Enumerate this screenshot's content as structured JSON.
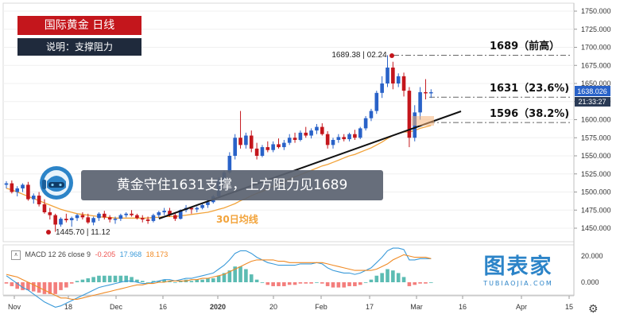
{
  "title": "国际黄金  日线",
  "description": "说明：支撑阻力",
  "banner": "黄金守住1631支撑，上方阻力见1689",
  "ma_label": "30日均线",
  "annotations": {
    "high_label": "1689.38 | 02.24",
    "low_label": "1445.70 | 11.12",
    "r1": "1689（前高）",
    "r2": "1631（23.6%)",
    "r3": "1596（38.2%)"
  },
  "price_axis": {
    "ticks": [
      "1750.000",
      "1725.000",
      "1700.000",
      "1675.000",
      "1650.000",
      "1625.000",
      "1600.000",
      "1575.000",
      "1550.000",
      "1525.000",
      "1500.000",
      "1475.000",
      "1450.000"
    ],
    "current_price": "1638.026",
    "countdown": "21:33:27"
  },
  "macd_axis": {
    "ticks": [
      "20.000",
      "0.000"
    ]
  },
  "time_axis": {
    "labels": [
      "Nov",
      "18",
      "Dec",
      "16",
      "2020",
      "20",
      "Feb",
      "17",
      "Mar",
      "16",
      "Apr",
      "15"
    ]
  },
  "macd_legend": {
    "name": "MACD 12 26 close 9",
    "hist": "-0.205",
    "macd": "17.968",
    "signal": "18.173"
  },
  "watermark": {
    "main": "图表家",
    "sub": "TUBIAOJIA.COM"
  },
  "colors": {
    "up": "#2962c8",
    "down": "#c4161c",
    "ma": "#f2a33a",
    "title_bg": "#c4161c",
    "desc_bg": "#1f2a3c",
    "macd_line": "#3a9ad9",
    "signal_line": "#f08a24",
    "hist_up": "#26a69a",
    "hist_down": "#ef5350"
  },
  "chart_data": {
    "type": "candlestick",
    "y_range": [
      1425,
      1760
    ],
    "candles": [
      [
        1510,
        1515,
        1505,
        1512
      ],
      [
        1512,
        1516,
        1498,
        1500
      ],
      [
        1500,
        1508,
        1494,
        1505
      ],
      [
        1505,
        1512,
        1500,
        1510
      ],
      [
        1510,
        1514,
        1488,
        1490
      ],
      [
        1490,
        1498,
        1484,
        1495
      ],
      [
        1495,
        1500,
        1480,
        1483
      ],
      [
        1483,
        1490,
        1470,
        1472
      ],
      [
        1472,
        1478,
        1462,
        1468
      ],
      [
        1468,
        1470,
        1445,
        1455
      ],
      [
        1455,
        1465,
        1452,
        1463
      ],
      [
        1463,
        1470,
        1458,
        1461
      ],
      [
        1461,
        1466,
        1452,
        1464
      ],
      [
        1464,
        1470,
        1460,
        1468
      ],
      [
        1468,
        1472,
        1462,
        1465
      ],
      [
        1465,
        1470,
        1456,
        1458
      ],
      [
        1458,
        1466,
        1454,
        1464
      ],
      [
        1464,
        1472,
        1460,
        1470
      ],
      [
        1470,
        1474,
        1462,
        1465
      ],
      [
        1465,
        1468,
        1458,
        1462
      ],
      [
        1462,
        1466,
        1456,
        1463
      ],
      [
        1463,
        1470,
        1460,
        1468
      ],
      [
        1468,
        1472,
        1465,
        1470
      ],
      [
        1470,
        1475,
        1466,
        1468
      ],
      [
        1468,
        1470,
        1462,
        1464
      ],
      [
        1464,
        1468,
        1458,
        1462
      ],
      [
        1462,
        1466,
        1456,
        1460
      ],
      [
        1460,
        1470,
        1458,
        1468
      ],
      [
        1468,
        1474,
        1464,
        1472
      ],
      [
        1472,
        1478,
        1468,
        1474
      ],
      [
        1474,
        1478,
        1466,
        1468
      ],
      [
        1468,
        1472,
        1460,
        1463
      ],
      [
        1463,
        1476,
        1462,
        1475
      ],
      [
        1475,
        1482,
        1472,
        1478
      ],
      [
        1478,
        1480,
        1470,
        1476
      ],
      [
        1476,
        1480,
        1472,
        1478
      ],
      [
        1478,
        1485,
        1476,
        1482
      ],
      [
        1482,
        1490,
        1478,
        1486
      ],
      [
        1486,
        1496,
        1484,
        1494
      ],
      [
        1494,
        1520,
        1492,
        1517
      ],
      [
        1517,
        1530,
        1512,
        1527
      ],
      [
        1527,
        1555,
        1525,
        1550
      ],
      [
        1550,
        1580,
        1545,
        1575
      ],
      [
        1575,
        1612,
        1560,
        1565
      ],
      [
        1565,
        1582,
        1560,
        1578
      ],
      [
        1578,
        1585,
        1555,
        1560
      ],
      [
        1560,
        1568,
        1545,
        1550
      ],
      [
        1550,
        1565,
        1548,
        1562
      ],
      [
        1562,
        1570,
        1555,
        1558
      ],
      [
        1558,
        1570,
        1555,
        1566
      ],
      [
        1566,
        1574,
        1560,
        1562
      ],
      [
        1562,
        1572,
        1558,
        1568
      ],
      [
        1568,
        1580,
        1565,
        1575
      ],
      [
        1575,
        1582,
        1568,
        1572
      ],
      [
        1572,
        1585,
        1570,
        1582
      ],
      [
        1582,
        1590,
        1575,
        1578
      ],
      [
        1578,
        1588,
        1574,
        1585
      ],
      [
        1585,
        1594,
        1580,
        1590
      ],
      [
        1590,
        1595,
        1578,
        1580
      ],
      [
        1580,
        1584,
        1560,
        1565
      ],
      [
        1565,
        1575,
        1560,
        1572
      ],
      [
        1572,
        1580,
        1568,
        1576
      ],
      [
        1576,
        1580,
        1570,
        1573
      ],
      [
        1573,
        1582,
        1570,
        1580
      ],
      [
        1580,
        1586,
        1572,
        1575
      ],
      [
        1575,
        1590,
        1573,
        1588
      ],
      [
        1588,
        1605,
        1585,
        1602
      ],
      [
        1602,
        1615,
        1598,
        1612
      ],
      [
        1612,
        1640,
        1608,
        1637
      ],
      [
        1637,
        1660,
        1630,
        1650
      ],
      [
        1650,
        1689,
        1645,
        1672
      ],
      [
        1672,
        1680,
        1642,
        1650
      ],
      [
        1650,
        1664,
        1645,
        1660
      ],
      [
        1660,
        1665,
        1632,
        1640
      ],
      [
        1640,
        1645,
        1562,
        1575
      ],
      [
        1575,
        1620,
        1570,
        1610
      ],
      [
        1610,
        1645,
        1600,
        1638
      ],
      [
        1638,
        1656,
        1628,
        1637
      ],
      [
        1637,
        1642,
        1630,
        1638
      ]
    ],
    "ma30": [
      1505,
      1503,
      1500,
      1497,
      1494,
      1491,
      1488,
      1485,
      1482,
      1479,
      1476,
      1474,
      1472,
      1470,
      1469,
      1468,
      1467,
      1466,
      1465,
      1465,
      1464,
      1464,
      1464,
      1464,
      1464,
      1464,
      1464,
      1465,
      1465,
      1466,
      1466,
      1466,
      1467,
      1468,
      1469,
      1470,
      1471,
      1472,
      1474,
      1476,
      1478,
      1481,
      1484,
      1488,
      1491,
      1495,
      1498,
      1501,
      1504,
      1508,
      1511,
      1514,
      1518,
      1521,
      1524,
      1527,
      1530,
      1533,
      1536,
      1538,
      1541,
      1544,
      1547,
      1550,
      1552,
      1555,
      1558,
      1561,
      1565,
      1569,
      1574,
      1578,
      1581,
      1583,
      1583,
      1585,
      1588,
      1590,
      1592
    ],
    "macd": [
      5,
      2,
      -1,
      -4,
      -6,
      -9,
      -12,
      -15,
      -17,
      -19,
      -18,
      -16,
      -14,
      -12,
      -10,
      -8,
      -6,
      -4,
      -3,
      -2,
      -1,
      0,
      1,
      1,
      0,
      -1,
      -1,
      0,
      1,
      2,
      2,
      1,
      2,
      3,
      3,
      4,
      5,
      6,
      7,
      10,
      13,
      17,
      22,
      24,
      24,
      22,
      19,
      17,
      15,
      14,
      13,
      13,
      13,
      13,
      14,
      14,
      14,
      15,
      14,
      11,
      9,
      8,
      7,
      7,
      6,
      7,
      9,
      11,
      15,
      19,
      24,
      26,
      26,
      25,
      17,
      17,
      18,
      18,
      18
    ],
    "signal": [
      6,
      5,
      4,
      2,
      0,
      -2,
      -4,
      -6,
      -8,
      -10,
      -12,
      -12,
      -13,
      -13,
      -12,
      -11,
      -10,
      -9,
      -8,
      -7,
      -6,
      -5,
      -4,
      -3,
      -2,
      -2,
      -1,
      -1,
      0,
      0,
      1,
      1,
      1,
      1,
      2,
      2,
      3,
      3,
      4,
      5,
      6,
      8,
      10,
      12,
      14,
      16,
      17,
      17,
      17,
      17,
      16,
      16,
      15,
      15,
      15,
      15,
      15,
      15,
      15,
      14,
      13,
      12,
      11,
      10,
      9,
      9,
      9,
      9,
      10,
      12,
      14,
      17,
      19,
      21,
      20,
      19,
      19,
      19,
      18
    ]
  }
}
